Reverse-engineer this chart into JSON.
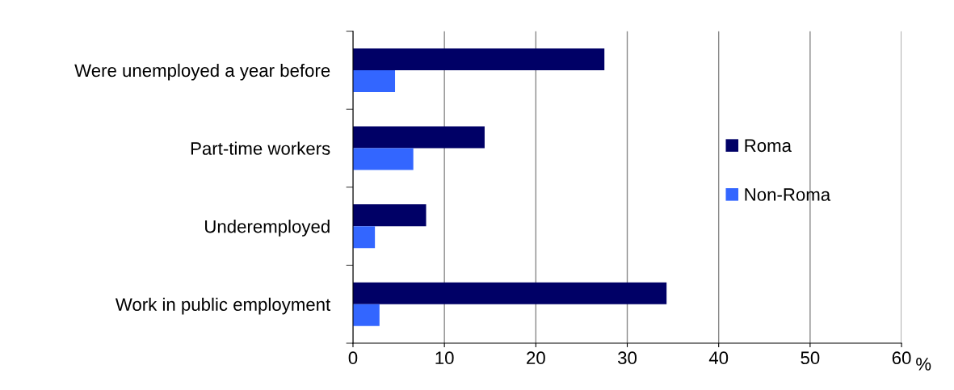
{
  "chart_data": {
    "type": "bar",
    "orientation": "horizontal",
    "categories": [
      "Were unemployed a year before",
      "Part-time workers",
      "Underemployed",
      "Work in public employment"
    ],
    "series": [
      {
        "name": "Roma",
        "color": "#000066",
        "values": [
          27.5,
          14.4,
          8.0,
          34.3
        ]
      },
      {
        "name": "Non-Roma",
        "color": "#3366ff",
        "values": [
          4.6,
          6.6,
          2.4,
          2.9
        ]
      }
    ],
    "xlabel": "%",
    "xlim": [
      0,
      60
    ],
    "xticks": [
      0,
      10,
      20,
      30,
      40,
      50,
      60
    ],
    "grid": "x",
    "legend": "right"
  }
}
